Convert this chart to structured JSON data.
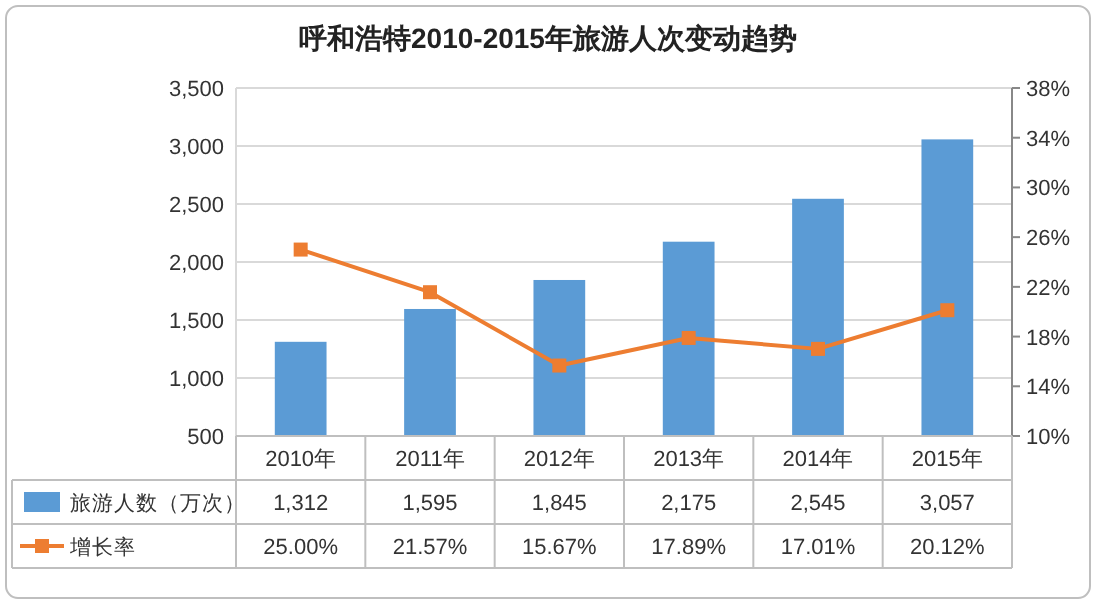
{
  "chart_data": {
    "type": "bar",
    "title": "呼和浩特2010-2015年旅游人次变动趋势",
    "categories": [
      "2010年",
      "2011年",
      "2012年",
      "2013年",
      "2014年",
      "2015年"
    ],
    "series": [
      {
        "name": "旅游人数（万次）",
        "color": "#5b9bd5",
        "values": [
          1312,
          1595,
          1845,
          2175,
          2545,
          3057
        ],
        "value_labels": [
          "1,312",
          "1,595",
          "1,845",
          "2,175",
          "2,545",
          "3,057"
        ]
      },
      {
        "name": "增长率",
        "type": "line",
        "axis": "y2",
        "marker": "square",
        "color": "#ed7d31",
        "values": [
          25.0,
          21.57,
          15.67,
          17.89,
          17.01,
          20.12
        ],
        "value_labels": [
          "25.00%",
          "21.57%",
          "15.67%",
          "17.89%",
          "17.01%",
          "20.12%"
        ]
      }
    ],
    "ylim": [
      500,
      3500
    ],
    "yticks": [
      {
        "value": 500,
        "label": "500"
      },
      {
        "value": 1000,
        "label": "1,000"
      },
      {
        "value": 1500,
        "label": "1,500"
      },
      {
        "value": 2000,
        "label": "2,000"
      },
      {
        "value": 2500,
        "label": "2,500"
      },
      {
        "value": 3000,
        "label": "3,000"
      },
      {
        "value": 3500,
        "label": "3,500"
      }
    ],
    "y2lim": [
      10,
      38
    ],
    "y2ticks": [
      {
        "value": 10,
        "label": "10%"
      },
      {
        "value": 14,
        "label": "14%"
      },
      {
        "value": 18,
        "label": "18%"
      },
      {
        "value": 22,
        "label": "22%"
      },
      {
        "value": 26,
        "label": "26%"
      },
      {
        "value": 30,
        "label": "30%"
      },
      {
        "value": 34,
        "label": "34%"
      },
      {
        "value": 38,
        "label": "38%"
      }
    ],
    "grid": "y",
    "legend": "bottom"
  }
}
